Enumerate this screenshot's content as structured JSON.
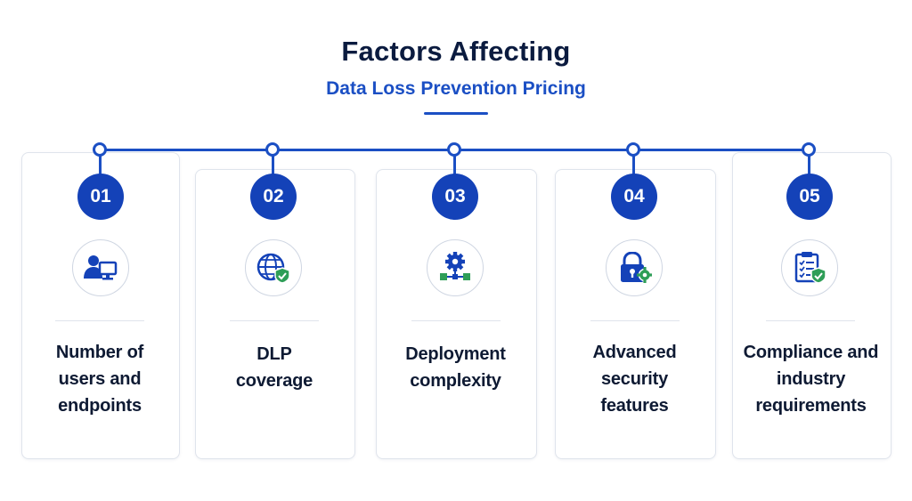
{
  "title": "Factors Affecting",
  "subtitle": "Data Loss Prevention Pricing",
  "colors": {
    "accent": "#1b4fc4",
    "badge": "#1442b8",
    "check": "#2e9e57",
    "text": "#0e1a33"
  },
  "factors": [
    {
      "number": "01",
      "icon": "user-monitor-icon",
      "lines": [
        "Number of",
        "users and",
        "endpoints"
      ]
    },
    {
      "number": "02",
      "icon": "globe-shield-icon",
      "lines": [
        "DLP",
        "coverage"
      ]
    },
    {
      "number": "03",
      "icon": "gear-network-icon",
      "lines": [
        "Deployment",
        "complexity"
      ]
    },
    {
      "number": "04",
      "icon": "lock-gear-icon",
      "lines": [
        "Advanced",
        "security",
        "features"
      ]
    },
    {
      "number": "05",
      "icon": "clipboard-check-icon",
      "lines": [
        "Compliance and",
        "industry",
        "requirements"
      ]
    }
  ]
}
